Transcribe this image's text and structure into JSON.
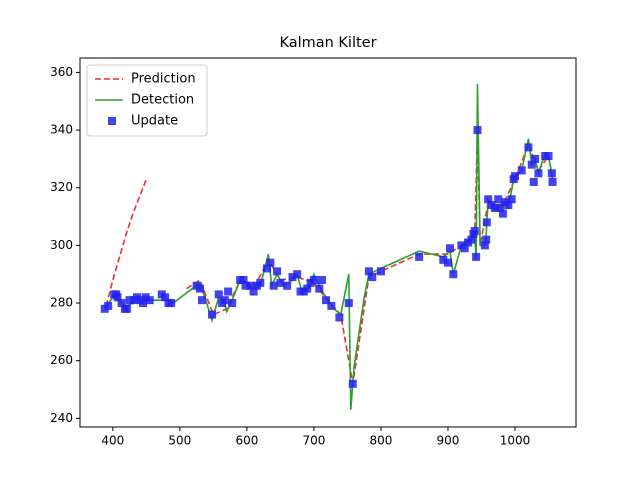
{
  "chart_data": {
    "type": "line",
    "title": "Kalman Kilter",
    "xlim": [
      351,
      1091
    ],
    "ylim": [
      237,
      365
    ],
    "xticks": [
      400,
      500,
      600,
      700,
      800,
      900,
      1000
    ],
    "yticks": [
      240,
      260,
      280,
      300,
      320,
      340,
      360
    ],
    "legend": "upper left",
    "series": [
      {
        "name": "Prediction",
        "color": "#e83030",
        "style": "dashed",
        "x": [
          390,
          400,
          410,
          420,
          430,
          440,
          450,
          500,
          510,
          530,
          550,
          570,
          590,
          610,
          632,
          650,
          675,
          700,
          720,
          740,
          758,
          782,
          800,
          857,
          900,
          920,
          940,
          944,
          948,
          960,
          980,
          1000,
          1020,
          1035,
          1050,
          1056
        ],
        "values": [
          279,
          288,
          296,
          304,
          311,
          317,
          323,
          null,
          285,
          288,
          276,
          278,
          288,
          285,
          295,
          288,
          289,
          287,
          281,
          276,
          252,
          289,
          291,
          297,
          297,
          300,
          304,
          340,
          300,
          315,
          313,
          323,
          335,
          326,
          331,
          323
        ]
      },
      {
        "name": "Detection",
        "color": "#2ca02c",
        "style": "solid",
        "x": [
          388,
          400,
          420,
          440,
          460,
          480,
          490,
          530,
          540,
          548,
          558,
          565,
          570,
          578,
          590,
          600,
          610,
          620,
          632,
          637,
          645,
          655,
          668,
          675,
          682,
          692,
          700,
          710,
          718,
          730,
          740,
          752,
          755,
          760,
          775,
          782,
          800,
          857,
          893,
          903,
          908,
          920,
          935,
          940,
          942,
          944,
          948,
          956,
          960,
          970,
          982,
          990,
          998,
          1010,
          1020,
          1025,
          1030,
          1035,
          1045,
          1050,
          1055
        ],
        "values": [
          278,
          282,
          279,
          281,
          281,
          281,
          280,
          287,
          280,
          274,
          282,
          281,
          277,
          281,
          288,
          287,
          285,
          286,
          297,
          286,
          290,
          286,
          288,
          290,
          284,
          285,
          290,
          285,
          282,
          278,
          276,
          290,
          243,
          258,
          282,
          290,
          292,
          298,
          296,
          298,
          290,
          300,
          302,
          304,
          295,
          356,
          300,
          300,
          316,
          312,
          315,
          313,
          323,
          326,
          337,
          328,
          330,
          325,
          332,
          331,
          325
        ]
      },
      {
        "name": "Update",
        "color": "#2222ee",
        "style": "square",
        "x": [
          388,
          393,
          402,
          405,
          407,
          413,
          418,
          421,
          425,
          432,
          436,
          442,
          445,
          449,
          455,
          473,
          478,
          483,
          487,
          525,
          530,
          533,
          548,
          558,
          563,
          567,
          572,
          578,
          590,
          595,
          598,
          605,
          610,
          615,
          620,
          630,
          635,
          640,
          645,
          650,
          660,
          668,
          675,
          680,
          685,
          690,
          695,
          700,
          708,
          712,
          718,
          726,
          738,
          752,
          758,
          782,
          787,
          800,
          857,
          893,
          900,
          903,
          908,
          920,
          925,
          930,
          935,
          938,
          940,
          942,
          944,
          955,
          957,
          958,
          960,
          965,
          970,
          975,
          978,
          982,
          985,
          990,
          995,
          998,
          1000,
          1010,
          1020,
          1025,
          1028,
          1030,
          1035,
          1045,
          1050,
          1055,
          1056
        ],
        "values": [
          278,
          279,
          283,
          283,
          282,
          280,
          278,
          278,
          281,
          281,
          282,
          281,
          280,
          282,
          281,
          283,
          282,
          280,
          280,
          286,
          285,
          281,
          276,
          283,
          280,
          281,
          284,
          280,
          288,
          288,
          286,
          286,
          284,
          286,
          287,
          292,
          294,
          286,
          291,
          287,
          286,
          289,
          290,
          284,
          284,
          285,
          287,
          288,
          285,
          288,
          281,
          279,
          275,
          280,
          252,
          291,
          289,
          291,
          296,
          295,
          294,
          299,
          290,
          300,
          299,
          301,
          302,
          304,
          305,
          296,
          340,
          300,
          302,
          308,
          316,
          314,
          313,
          316,
          313,
          311,
          315,
          314,
          316,
          323,
          324,
          326,
          334,
          328,
          322,
          330,
          325,
          331,
          331,
          325,
          322
        ]
      }
    ]
  }
}
